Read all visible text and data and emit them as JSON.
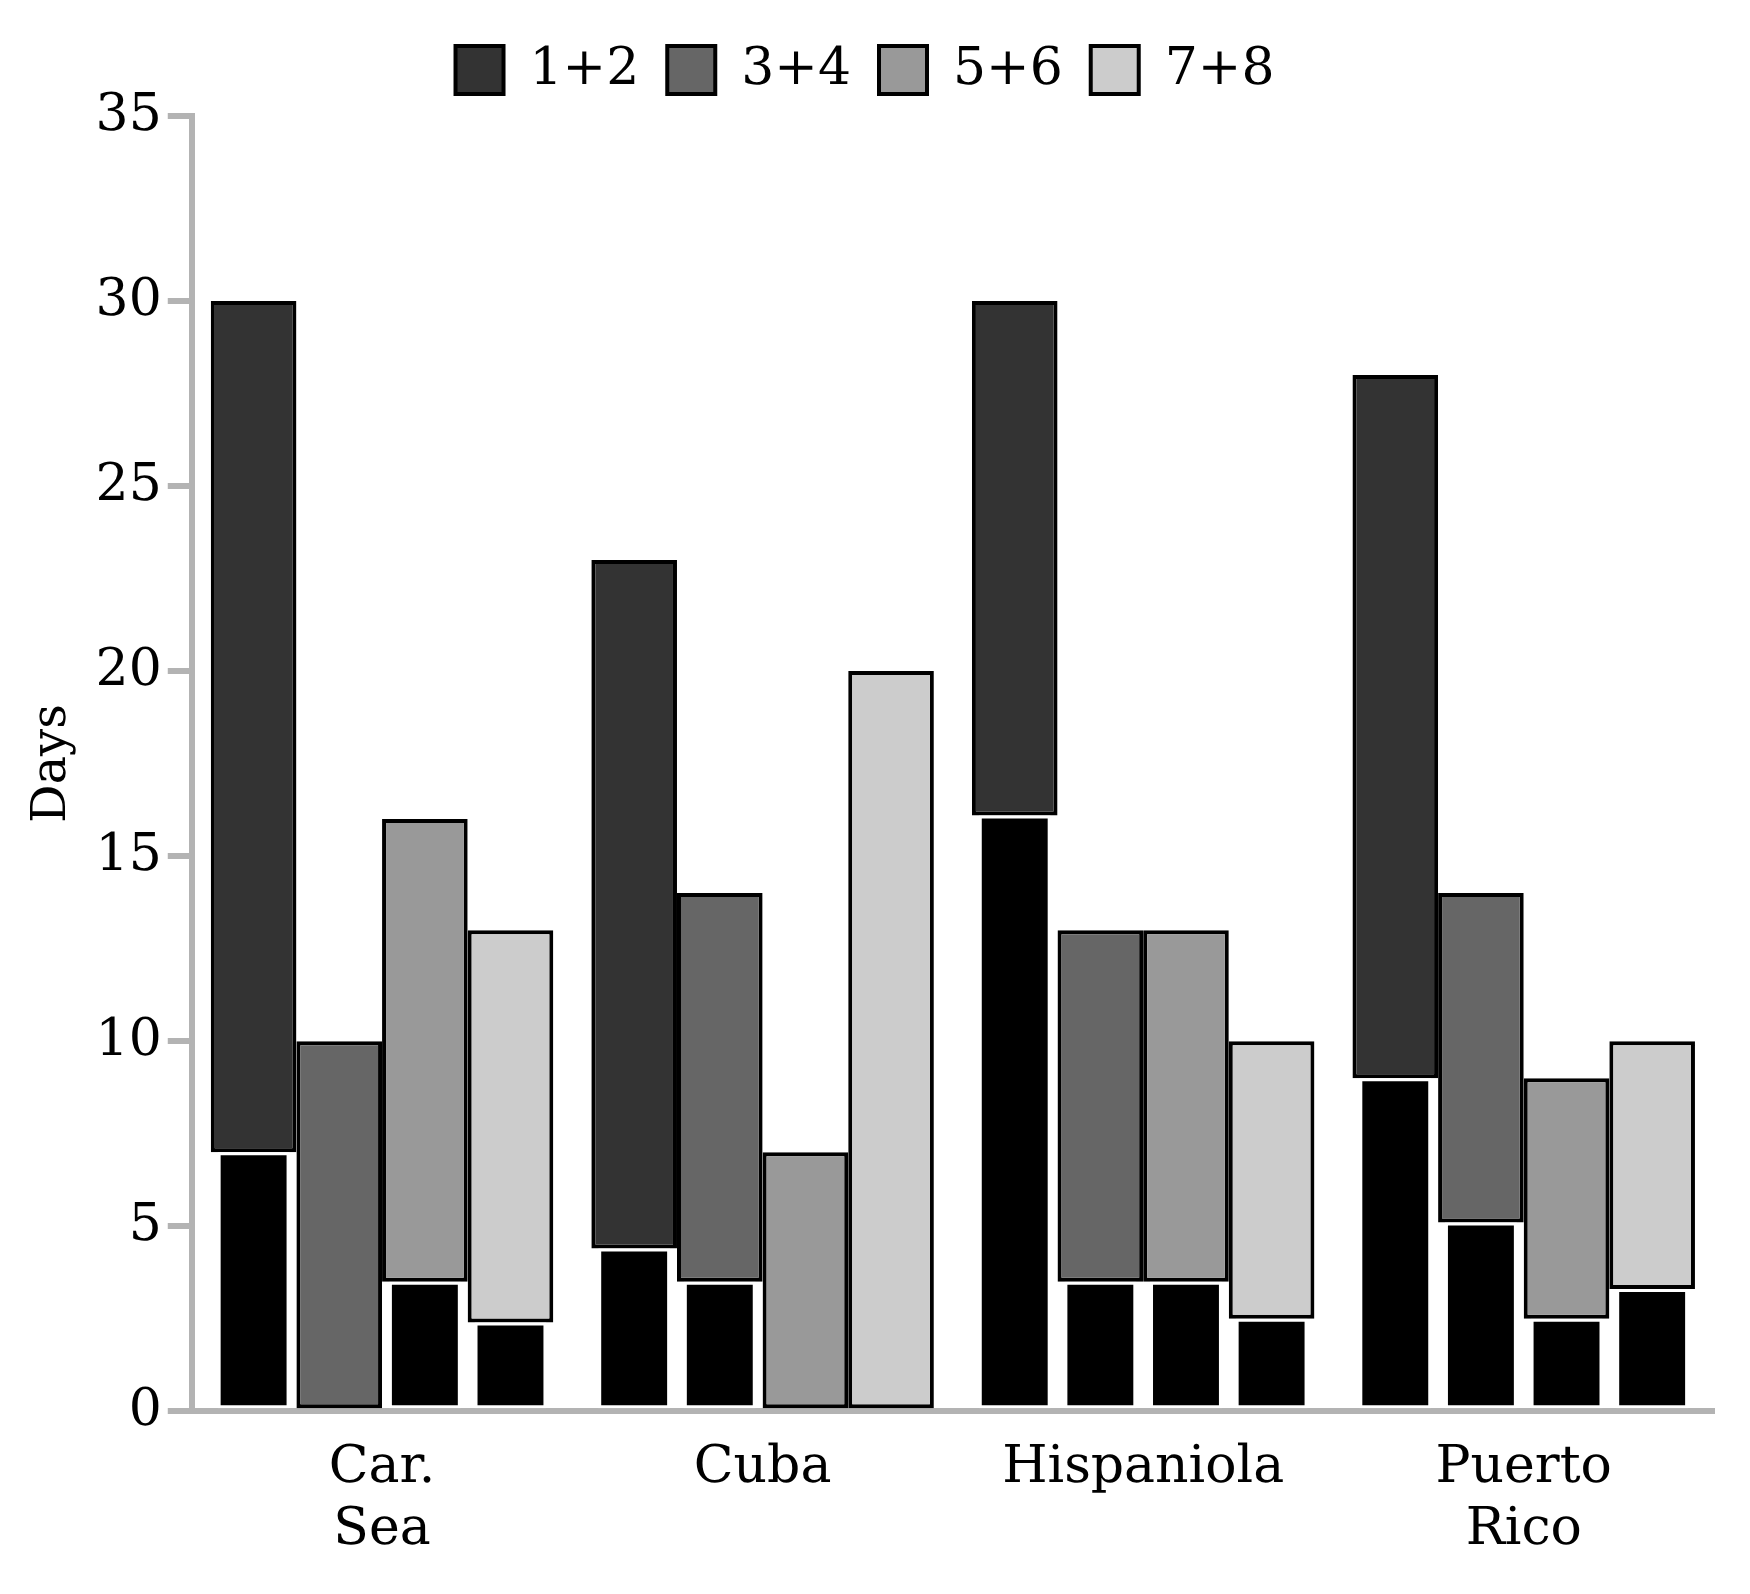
{
  "chart_data": {
    "type": "bar",
    "ylabel": "Days",
    "categories": [
      "Car. Sea",
      "Cuba",
      "Hispaniola",
      "Puerto Rico"
    ],
    "ylim": [
      0,
      35
    ],
    "yticks": [
      0,
      5,
      10,
      15,
      20,
      25,
      30,
      35
    ],
    "legend": "top",
    "grid": false,
    "series": [
      {
        "color": "#000000",
        "values": [
          7,
          4.4,
          16.1,
          9
        ]
      },
      {
        "name": "1+2",
        "color": "#333333",
        "base": [
          7,
          4.4,
          16.1,
          9
        ],
        "values": [
          23,
          18.6,
          13.9,
          19
        ]
      },
      {
        "color": "#000000",
        "values": [
          null,
          3.5,
          3.5,
          5.1
        ]
      },
      {
        "name": "3+4",
        "color": "#666666",
        "base": [
          0,
          3.5,
          3.5,
          5.1
        ],
        "values": [
          10,
          10.5,
          9.5,
          8.9
        ]
      },
      {
        "color": "#000000",
        "values": [
          3.5,
          null,
          3.5,
          2.5
        ]
      },
      {
        "name": "5+6",
        "color": "#999999",
        "base": [
          3.5,
          0,
          3.5,
          2.5
        ],
        "values": [
          12.5,
          7,
          9.5,
          6.5
        ]
      },
      {
        "color": "#000000",
        "values": [
          2.4,
          null,
          2.5,
          3.3
        ]
      },
      {
        "name": "7+8",
        "color": "#cccccc",
        "base": [
          2.4,
          0,
          2.5,
          3.3
        ],
        "values": [
          10.6,
          20,
          7.5,
          6.7
        ]
      }
    ]
  }
}
